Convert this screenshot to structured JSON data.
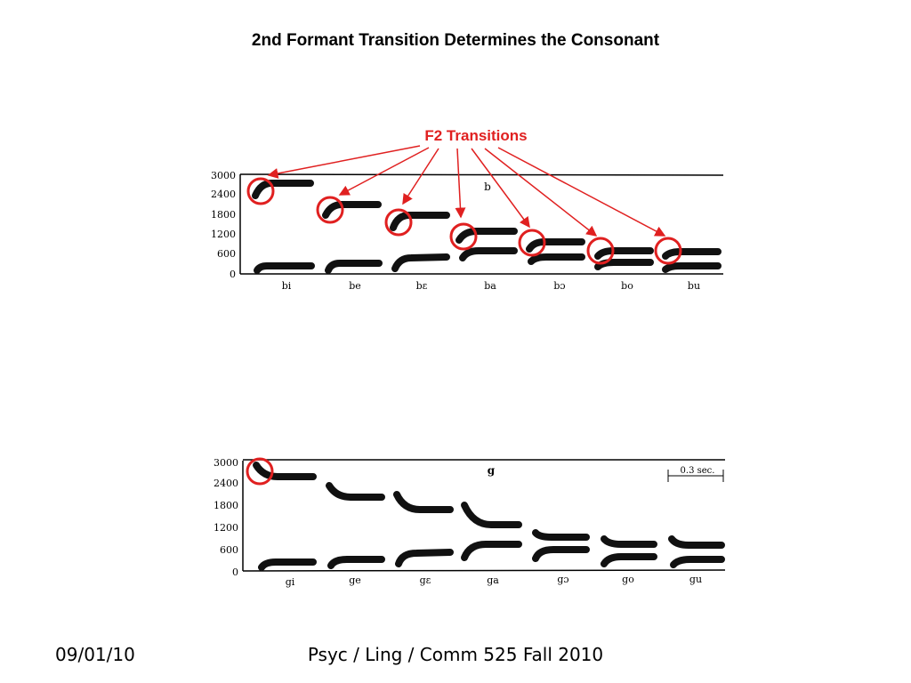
{
  "slide": {
    "title": "2nd Formant Transition Determines the Consonant",
    "footer_date": "09/01/10",
    "footer_course": "Psyc / Ling / Comm 525 Fall 2010"
  },
  "annotation": {
    "label": "F2 Transitions",
    "color": "#e02020"
  },
  "top_panel": {
    "consonant": "b",
    "y_ticks": [
      "3000",
      "2400",
      "1800",
      "1200",
      "600",
      "0"
    ],
    "syllables": [
      "bi",
      "be",
      "bɛ",
      "ba",
      "bɔ",
      "bo",
      "bu"
    ]
  },
  "bottom_panel": {
    "consonant": "g",
    "y_ticks": [
      "3000",
      "2400",
      "1800",
      "1200",
      "600",
      "0"
    ],
    "syllables": [
      "gi",
      "ge",
      "gɛ",
      "ga",
      "gɔ",
      "go",
      "gu"
    ],
    "scale_label": "0.3 sec."
  }
}
